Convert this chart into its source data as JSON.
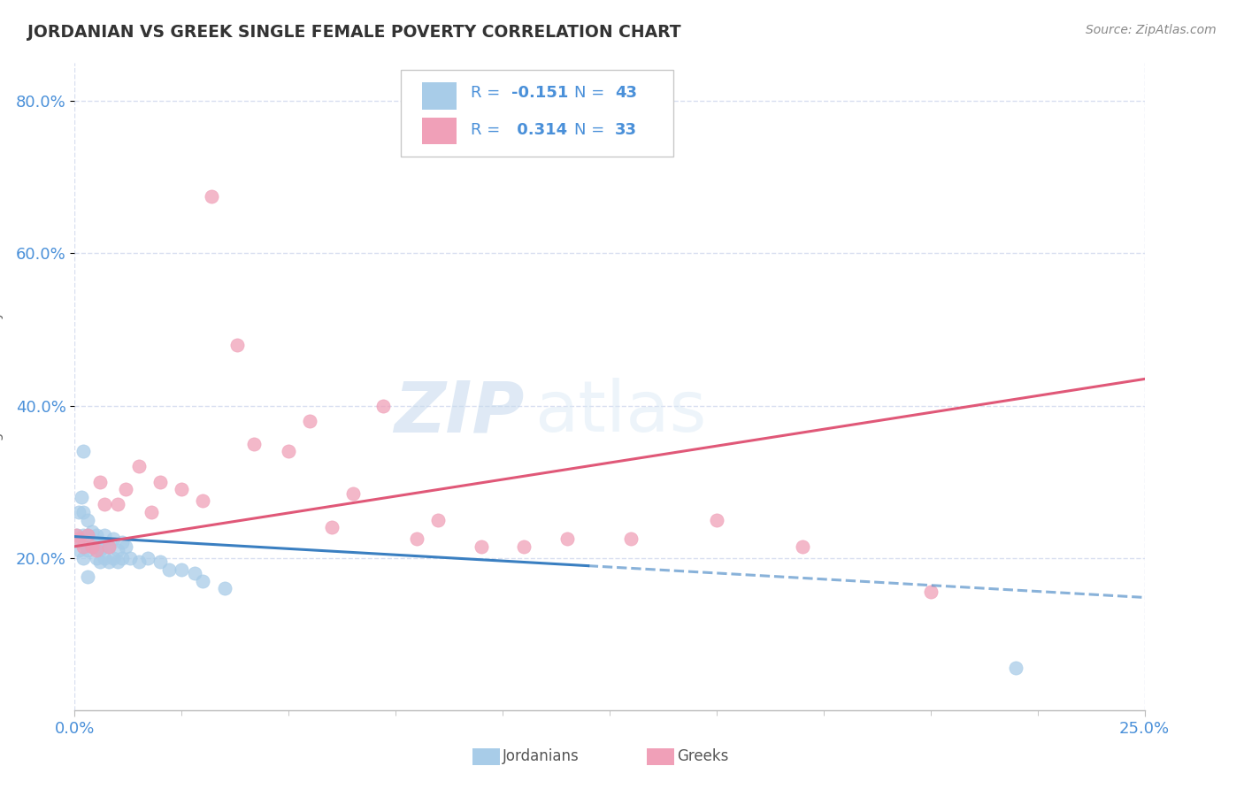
{
  "title": "JORDANIAN VS GREEK SINGLE FEMALE POVERTY CORRELATION CHART",
  "source_text": "Source: ZipAtlas.com",
  "ylabel_label": "Single Female Poverty",
  "x_min": 0.0,
  "x_max": 0.25,
  "y_min": 0.0,
  "y_max": 0.85,
  "y_ticks": [
    0.2,
    0.4,
    0.6,
    0.8
  ],
  "y_tick_labels": [
    "20.0%",
    "40.0%",
    "60.0%",
    "80.0%"
  ],
  "color_jordanian": "#a8cce8",
  "color_greek": "#f0a0b8",
  "color_trend_jordanian": "#3a7fc1",
  "color_trend_greek": "#e05878",
  "color_axis_labels": "#4a90d9",
  "color_title": "#333333",
  "color_grid": "#d8dff0",
  "watermark_zip": "ZIP",
  "watermark_atlas": "atlas",
  "jordanian_x": [
    0.0005,
    0.001,
    0.001,
    0.0015,
    0.0015,
    0.002,
    0.002,
    0.002,
    0.002,
    0.003,
    0.003,
    0.003,
    0.003,
    0.004,
    0.004,
    0.005,
    0.005,
    0.005,
    0.006,
    0.006,
    0.006,
    0.007,
    0.007,
    0.007,
    0.008,
    0.008,
    0.009,
    0.009,
    0.01,
    0.01,
    0.011,
    0.011,
    0.012,
    0.013,
    0.015,
    0.017,
    0.02,
    0.022,
    0.025,
    0.028,
    0.03,
    0.035,
    0.22
  ],
  "jordanian_y": [
    0.23,
    0.26,
    0.21,
    0.28,
    0.22,
    0.34,
    0.26,
    0.23,
    0.2,
    0.25,
    0.23,
    0.21,
    0.175,
    0.235,
    0.215,
    0.23,
    0.215,
    0.2,
    0.22,
    0.21,
    0.195,
    0.23,
    0.215,
    0.2,
    0.215,
    0.195,
    0.225,
    0.2,
    0.21,
    0.195,
    0.22,
    0.2,
    0.215,
    0.2,
    0.195,
    0.2,
    0.195,
    0.185,
    0.185,
    0.18,
    0.17,
    0.16,
    0.055
  ],
  "greek_x": [
    0.0003,
    0.001,
    0.002,
    0.003,
    0.004,
    0.005,
    0.006,
    0.007,
    0.008,
    0.01,
    0.012,
    0.015,
    0.018,
    0.02,
    0.025,
    0.03,
    0.032,
    0.038,
    0.042,
    0.05,
    0.055,
    0.06,
    0.065,
    0.072,
    0.08,
    0.085,
    0.095,
    0.105,
    0.115,
    0.13,
    0.15,
    0.17,
    0.2
  ],
  "greek_y": [
    0.23,
    0.225,
    0.215,
    0.23,
    0.215,
    0.21,
    0.3,
    0.27,
    0.215,
    0.27,
    0.29,
    0.32,
    0.26,
    0.3,
    0.29,
    0.275,
    0.675,
    0.48,
    0.35,
    0.34,
    0.38,
    0.24,
    0.285,
    0.4,
    0.225,
    0.25,
    0.215,
    0.215,
    0.225,
    0.225,
    0.25,
    0.215,
    0.155
  ],
  "jordanian_marker_size": 120,
  "greek_marker_size": 120,
  "trend_linewidth": 2.2,
  "blue_trend_x_start": 0.0,
  "blue_trend_x_solid_end": 0.12,
  "blue_trend_x_dashed_end": 0.25,
  "pink_trend_x_start": 0.0,
  "pink_trend_x_end": 0.25,
  "blue_intercept": 0.228,
  "blue_slope": -0.32,
  "pink_intercept": 0.215,
  "pink_slope": 0.88
}
